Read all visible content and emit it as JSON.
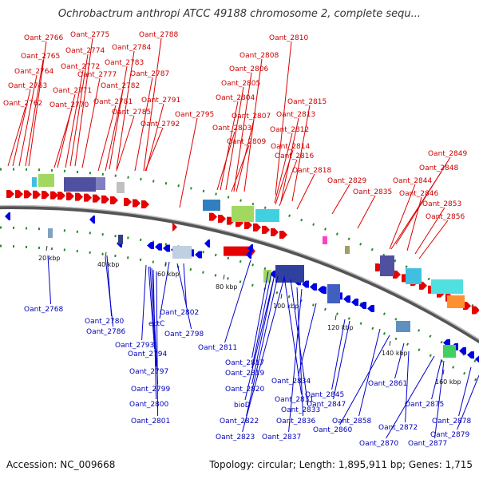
{
  "header": {
    "title": "Ochrobactrum anthropi ATCC 49188 chromosome 2, complete sequ..."
  },
  "footer": {
    "accession": "Accession: NC_009668",
    "meta": "Topology: circular; Length: 1,895,911 bp; Genes: 1,715"
  },
  "colors": {
    "forward": "#e00000",
    "reverse": "#0000e0",
    "backbone": "#777777",
    "tick": "#2a8a2a"
  },
  "scale_labels": [
    "20 kbp",
    "40 kbp",
    "60 kbp",
    "80 kbp",
    "100 kbp",
    "120 kbp",
    "140 kbp",
    "160 kbp"
  ],
  "top_labels": [
    "Oant_2766",
    "Oant_2775",
    "Oant_2788",
    "Oant_2765",
    "Oant_2774",
    "Oant_2784",
    "Oant_2810",
    "Oant_2764",
    "Oant_2772",
    "Oant_2783",
    "Oant_2808",
    "Oant_2763",
    "Oant_2777",
    "Oant_2787",
    "Oant_2806",
    "Oant_2771",
    "Oant_2782",
    "Oant_2805",
    "Oant_2762",
    "Oant_2770",
    "Oant_2781",
    "Oant_2791",
    "Oant_2804",
    "Oant_2815",
    "Oant_2785",
    "Oant_2795",
    "Oant_2807",
    "Oant_2813",
    "Oant_2792",
    "Oant_2803",
    "Oant_2812",
    "Oant_2809",
    "Oant_2814",
    "Oant_2849",
    "Oant_2816",
    "Oant_2848",
    "Oant_2818",
    "Oant_2844",
    "Oant_2829",
    "Oant_2846",
    "Oant_2835",
    "Oant_2853",
    "Oant_2856"
  ],
  "bottom_labels": [
    "Oant_2768",
    "Oant_2780",
    "Oant_2802",
    "Oant_2786",
    "ectC",
    "Oant_2798",
    "Oant_2793",
    "Oant_2811",
    "Oant_2794",
    "Oant_2817",
    "Oant_2797",
    "Oant_2819",
    "Oant_2834",
    "Oant_2861",
    "Oant_2799",
    "Oant_2820",
    "Oant_2845",
    "Oant_2831",
    "Oant_2847",
    "Oant_2875",
    "Oant_2800",
    "bioD",
    "Oant_2833",
    "Oant_2801",
    "Oant_2822",
    "Oant_2836",
    "Oant_2858",
    "Oant_2872",
    "Oant_2878",
    "Oant_2823",
    "Oant_2837",
    "Oant_2860",
    "Oant_2870",
    "Oant_2877",
    "Oant_2879"
  ]
}
